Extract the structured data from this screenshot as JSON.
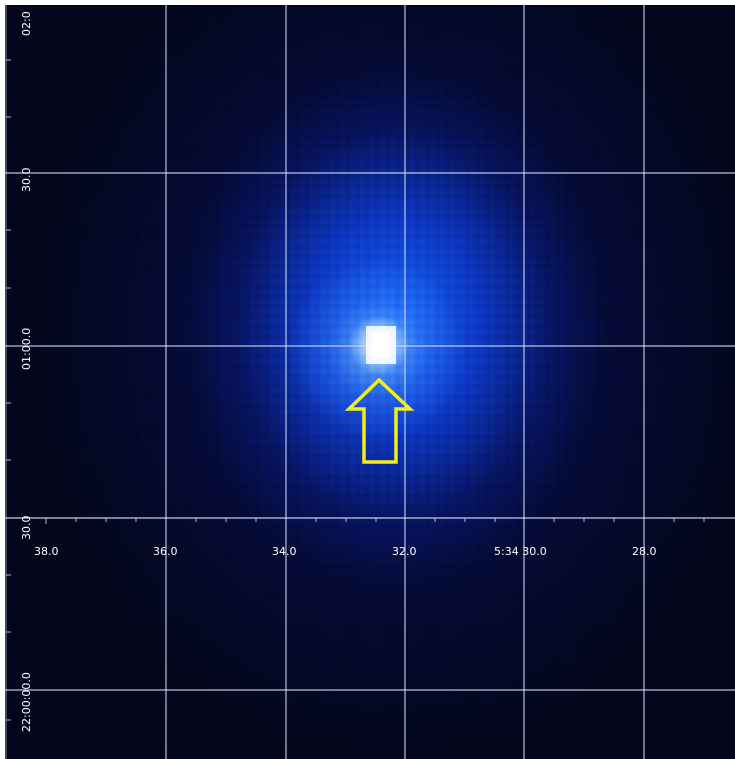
{
  "image": {
    "subject": "deep-sky image with coordinate grid",
    "colors": {
      "background": "#03061c",
      "glow": "#1e6eff",
      "core": "#ffffff",
      "grid": "#d8e2ff",
      "arrow": "#f2ee1a"
    }
  },
  "grid": {
    "x_labels": [
      "38.0",
      "36.0",
      "34.0",
      "32.0",
      "5:34 30.0",
      "28.0"
    ],
    "y_labels": [
      "02:0",
      "30.0",
      "01:00.0",
      "30.0",
      "22:00:00.0"
    ],
    "arrow_icon": "up-arrow-icon"
  }
}
